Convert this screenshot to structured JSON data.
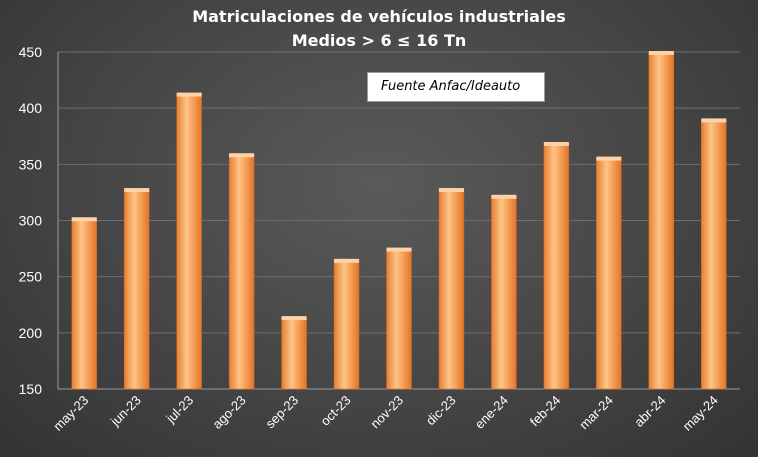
{
  "chart_data": {
    "type": "bar",
    "title": "Matriculaciones de vehículos industriales",
    "subtitle": "Medios > 6 ≤ 16 Tn",
    "annotation": "Fuente Anfac/Ideauto",
    "categories": [
      "may-23",
      "jun-23",
      "jul-23",
      "ago-23",
      "sep-23",
      "oct-23",
      "nov-23",
      "dic-23",
      "ene-24",
      "feb-24",
      "mar-24",
      "abr-24",
      "may-24"
    ],
    "values": [
      302,
      328,
      413,
      359,
      214,
      265,
      275,
      328,
      322,
      369,
      356,
      450,
      390
    ],
    "ylim": [
      150,
      450
    ],
    "yticks": [
      150,
      200,
      250,
      300,
      350,
      400,
      450
    ],
    "grid": true,
    "legend": "none",
    "colors": {
      "bar": "#f79646",
      "bar_highlight": "#fcd3a8",
      "background": "#454545",
      "grid": "#6e6e6e",
      "text": "#ffffff"
    }
  }
}
